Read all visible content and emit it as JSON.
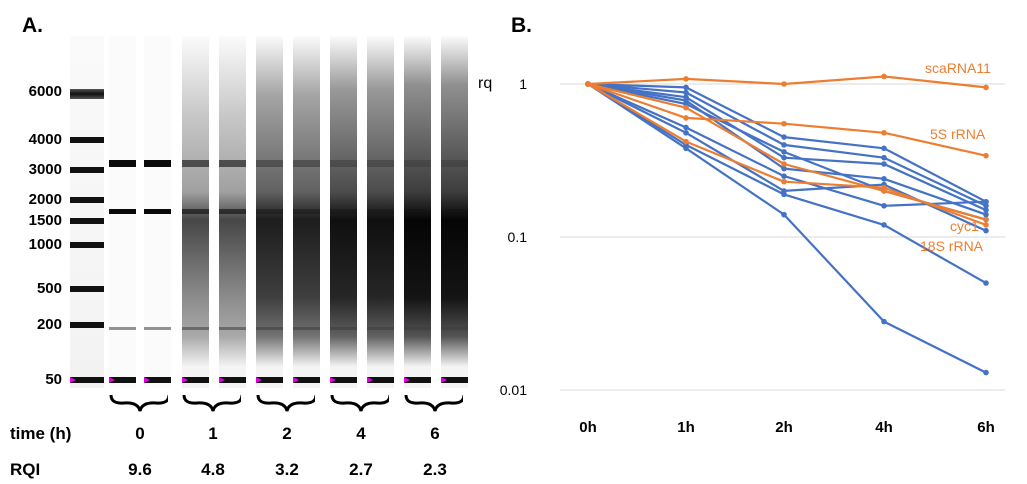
{
  "panels": {
    "a_label": "A.",
    "b_label": "B."
  },
  "gel": {
    "ladder_labels": [
      "6000",
      "4000",
      "3000",
      "2000",
      "1500",
      "1000",
      "500",
      "200",
      "50"
    ],
    "ladder_values": [
      6000,
      4000,
      3000,
      2000,
      1500,
      1000,
      500,
      200,
      50
    ],
    "time_title": "time (h)",
    "rqi_title": "RQI",
    "groups": [
      {
        "time": "0",
        "rqi": "9.6",
        "degradation": 0.0
      },
      {
        "time": "1",
        "rqi": "4.8",
        "degradation": 0.45
      },
      {
        "time": "2",
        "rqi": "3.2",
        "degradation": 0.75
      },
      {
        "time": "4",
        "rqi": "2.7",
        "degradation": 0.85
      },
      {
        "time": "6",
        "rqi": "2.3",
        "degradation": 0.92
      }
    ],
    "marker_color": "#e000e0"
  },
  "chart_data": {
    "type": "line",
    "title": "",
    "xlabel": "",
    "ylabel": "rq",
    "x": [
      "0h",
      "1h",
      "2h",
      "4h",
      "6h"
    ],
    "y_scale": "log",
    "ylim": [
      0.01,
      1
    ],
    "y_ticks": [
      "1",
      "0.1",
      "0.01"
    ],
    "y_tick_values": [
      1,
      0.1,
      0.01
    ],
    "grid": true,
    "colors": {
      "blue": "#4472c4",
      "orange": "#ed7d31",
      "grid": "#d9d9d9"
    },
    "labels": [
      {
        "text": "scaRNA11",
        "series": 0
      },
      {
        "text": "5S rRNA",
        "series": 1
      },
      {
        "text": "cyc1",
        "series": 2
      },
      {
        "text": "18S rRNA",
        "series": 3
      }
    ],
    "series": [
      {
        "group": "orange",
        "values": [
          1,
          1.08,
          1.0,
          1.12,
          0.95
        ]
      },
      {
        "group": "orange",
        "values": [
          1,
          0.6,
          0.55,
          0.48,
          0.34
        ]
      },
      {
        "group": "orange",
        "values": [
          1,
          0.7,
          0.3,
          0.2,
          0.13
        ]
      },
      {
        "group": "orange",
        "values": [
          1,
          0.42,
          0.23,
          0.21,
          0.12
        ]
      },
      {
        "group": "blue",
        "values": [
          1,
          0.95,
          0.45,
          0.38,
          0.17
        ]
      },
      {
        "group": "blue",
        "values": [
          1,
          0.88,
          0.4,
          0.33,
          0.16
        ]
      },
      {
        "group": "blue",
        "values": [
          1,
          0.82,
          0.33,
          0.3,
          0.15
        ]
      },
      {
        "group": "blue",
        "values": [
          1,
          0.78,
          0.28,
          0.24,
          0.14
        ]
      },
      {
        "group": "blue",
        "values": [
          1,
          0.74,
          0.36,
          0.2,
          0.13
        ]
      },
      {
        "group": "blue",
        "values": [
          1,
          0.52,
          0.25,
          0.16,
          0.17
        ]
      },
      {
        "group": "blue",
        "values": [
          1,
          0.48,
          0.2,
          0.22,
          0.11
        ]
      },
      {
        "group": "blue",
        "values": [
          1,
          0.4,
          0.19,
          0.12,
          0.05
        ]
      },
      {
        "group": "blue",
        "values": [
          1,
          0.38,
          0.14,
          0.028,
          0.013
        ]
      }
    ]
  }
}
